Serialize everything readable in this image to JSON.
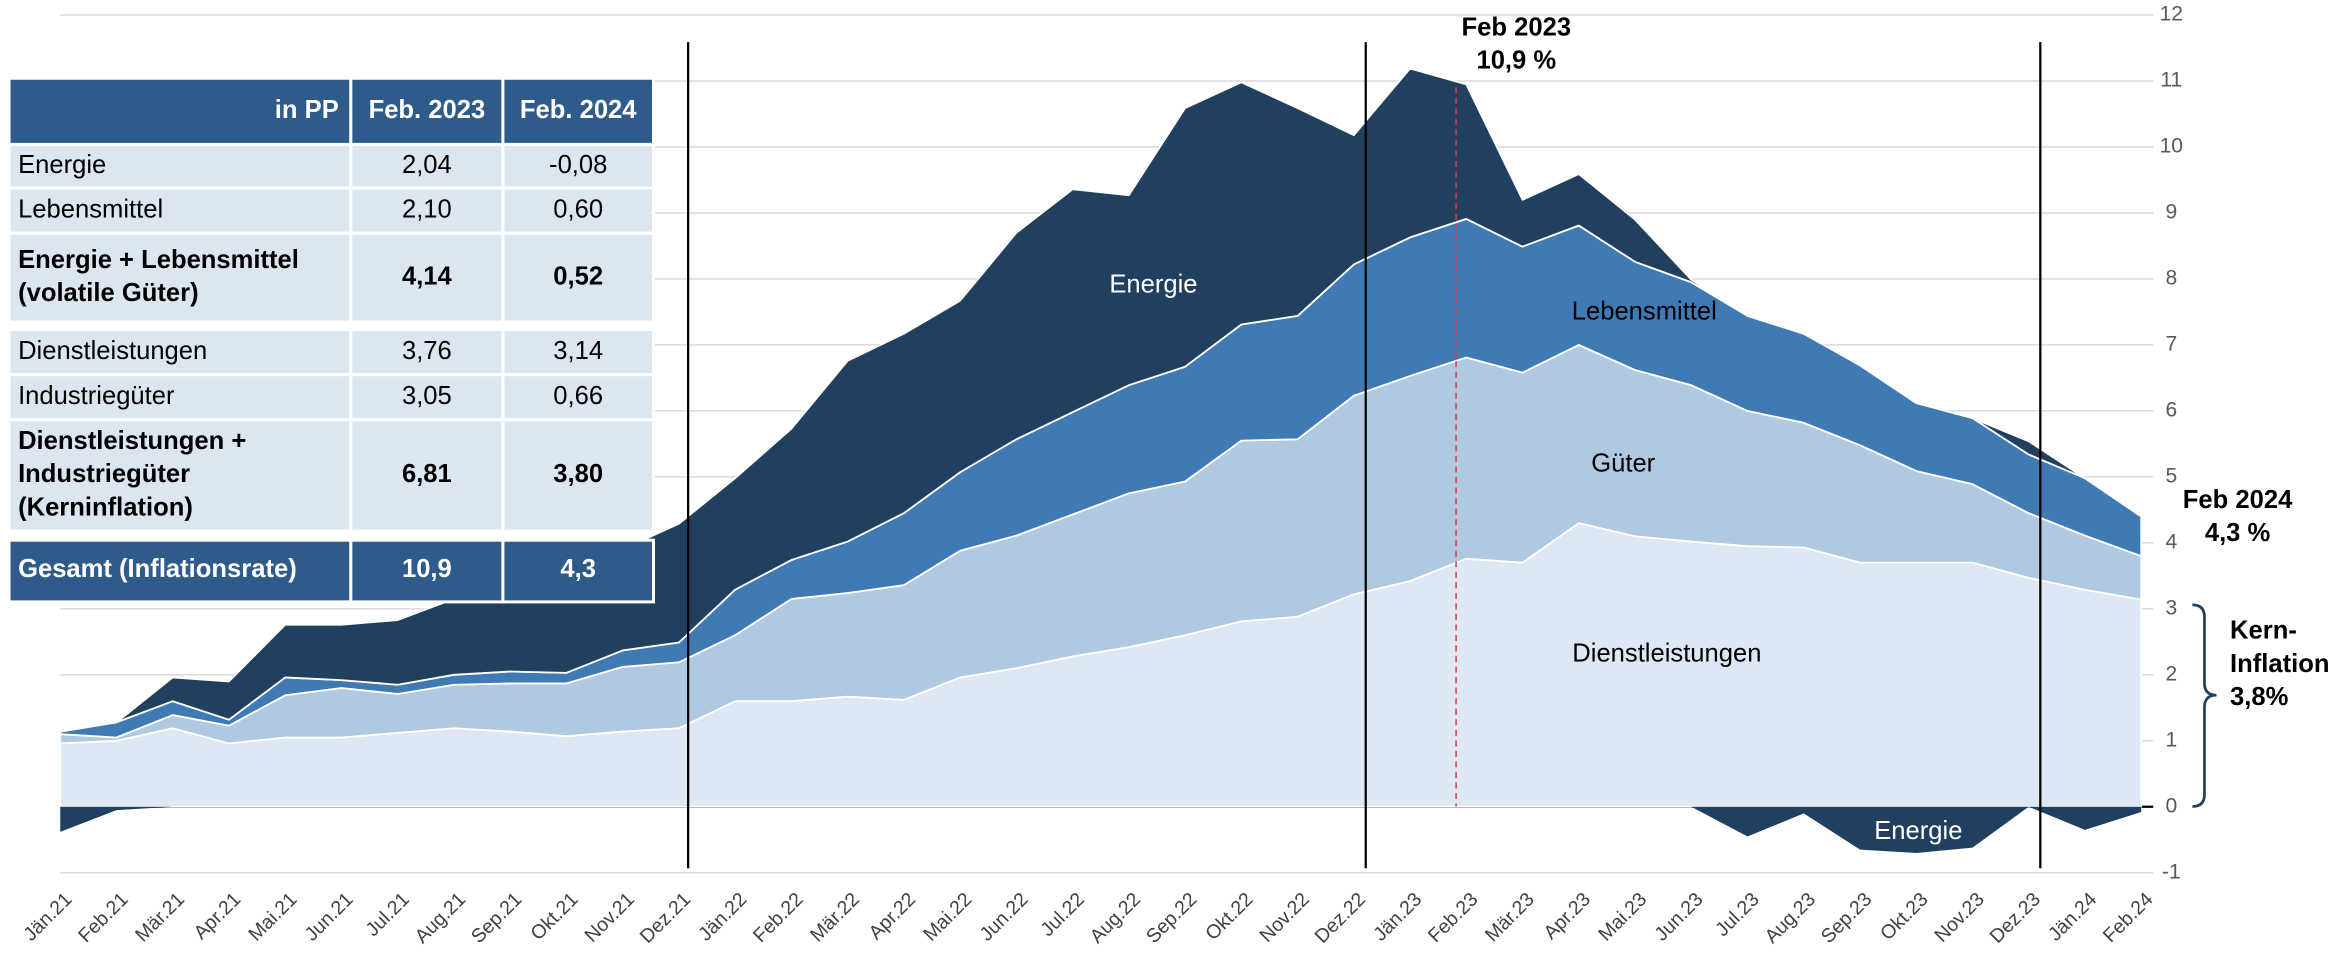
{
  "chart_data": {
    "type": "stacked_area",
    "categories": [
      "Jän.21",
      "Feb.21",
      "Mär.21",
      "Apr.21",
      "Mai.21",
      "Jun.21",
      "Jul.21",
      "Aug.21",
      "Sep.21",
      "Okt.21",
      "Nov.21",
      "Dez.21",
      "Jän.22",
      "Feb.22",
      "Mär.22",
      "Apr.22",
      "Mai.22",
      "Jun.22",
      "Jul.22",
      "Aug.22",
      "Sep.22",
      "Okt.22",
      "Nov.22",
      "Dez.22",
      "Jän.23",
      "Feb.23",
      "Mär.23",
      "Apr.23",
      "Mai.23",
      "Jun.23",
      "Jul.23",
      "Aug.23",
      "Sep.23",
      "Okt.23",
      "Nov.23",
      "Dez.23",
      "Jän.24",
      "Feb.24"
    ],
    "series": [
      {
        "name": "Dienstleistungen",
        "color": "#dde8f4",
        "values": [
          0.96,
          1.0,
          1.19,
          0.96,
          1.05,
          1.05,
          1.12,
          1.19,
          1.14,
          1.07,
          1.14,
          1.19,
          1.6,
          1.6,
          1.67,
          1.62,
          1.96,
          2.1,
          2.28,
          2.42,
          2.6,
          2.81,
          2.88,
          3.22,
          3.42,
          3.76,
          3.7,
          4.3,
          4.1,
          4.02,
          3.95,
          3.93,
          3.7,
          3.7,
          3.7,
          3.47,
          3.29,
          3.14
        ]
      },
      {
        "name": "Güter",
        "color": "#b0c9e1",
        "values": [
          0.14,
          0.05,
          0.2,
          0.27,
          0.64,
          0.75,
          0.59,
          0.66,
          0.73,
          0.8,
          0.98,
          1.0,
          1.0,
          1.55,
          1.57,
          1.74,
          1.92,
          2.01,
          2.15,
          2.33,
          2.33,
          2.74,
          2.69,
          3.01,
          3.11,
          3.05,
          2.88,
          2.7,
          2.52,
          2.37,
          2.05,
          1.89,
          1.78,
          1.39,
          1.19,
          0.98,
          0.82,
          0.66
        ]
      },
      {
        "name": "Lebensmittel",
        "color": "#3f7ab5",
        "values": [
          0.04,
          0.23,
          0.21,
          0.09,
          0.27,
          0.12,
          0.14,
          0.15,
          0.18,
          0.16,
          0.25,
          0.3,
          0.69,
          0.59,
          0.78,
          1.09,
          1.19,
          1.46,
          1.55,
          1.64,
          1.74,
          1.76,
          1.87,
          1.99,
          2.1,
          2.1,
          1.91,
          1.81,
          1.64,
          1.56,
          1.44,
          1.35,
          1.21,
          1.03,
          1.0,
          0.89,
          0.87,
          0.6
        ]
      },
      {
        "name": "Energie",
        "color": "#213f5e",
        "values": [
          -0.38,
          -0.05,
          0.36,
          0.58,
          0.8,
          0.84,
          0.98,
          1.15,
          1.24,
          1.42,
          1.53,
          1.8,
          1.69,
          1.99,
          2.74,
          2.72,
          2.6,
          3.13,
          3.38,
          2.88,
          3.92,
          3.67,
          3.15,
          1.96,
          2.56,
          2.04,
          0.71,
          0.78,
          0.64,
          0.04,
          -0.45,
          -0.1,
          -0.65,
          -0.7,
          -0.62,
          0.2,
          -0.35,
          -0.08
        ]
      }
    ],
    "ylim": [
      -1,
      12
    ],
    "yticks": [
      -1,
      0,
      1,
      2,
      3,
      4,
      5,
      6,
      7,
      8,
      9,
      10,
      11,
      12
    ],
    "grid": true,
    "annotations": [
      "Feb 2023",
      "10,9 %",
      "Feb 2024",
      "4,3 %",
      "Kern-",
      "Inflation",
      "3,8%",
      "Energie",
      "Lebensmittel",
      "Güter",
      "Dienstleistungen",
      "Energie"
    ]
  },
  "table": {
    "header": [
      "in PP",
      "Feb. 2023",
      "Feb. 2024"
    ],
    "rows": [
      {
        "label": [
          "Energie"
        ],
        "v2023": "2,04",
        "v2024": "-0,08",
        "bold": false
      },
      {
        "label": [
          "Lebensmittel"
        ],
        "v2023": "2,10",
        "v2024": "0,60",
        "bold": false
      },
      {
        "label": [
          "Energie + Lebensmittel",
          "(volatile Güter)"
        ],
        "v2023": "4,14",
        "v2024": "0,52",
        "bold": true
      },
      {
        "label": [
          "Dienstleistungen"
        ],
        "v2023": "3,76",
        "v2024": "3,14",
        "bold": false
      },
      {
        "label": [
          "Industriegüter"
        ],
        "v2023": "3,05",
        "v2024": "0,66",
        "bold": false
      },
      {
        "label": [
          "Dienstleistungen +",
          "Industriegüter",
          "(Kerninflation)"
        ],
        "v2023": "6,81",
        "v2024": "3,80",
        "bold": true
      }
    ],
    "total": [
      "Gesamt (Inflationsrate)",
      "10,9",
      "4,3"
    ]
  }
}
